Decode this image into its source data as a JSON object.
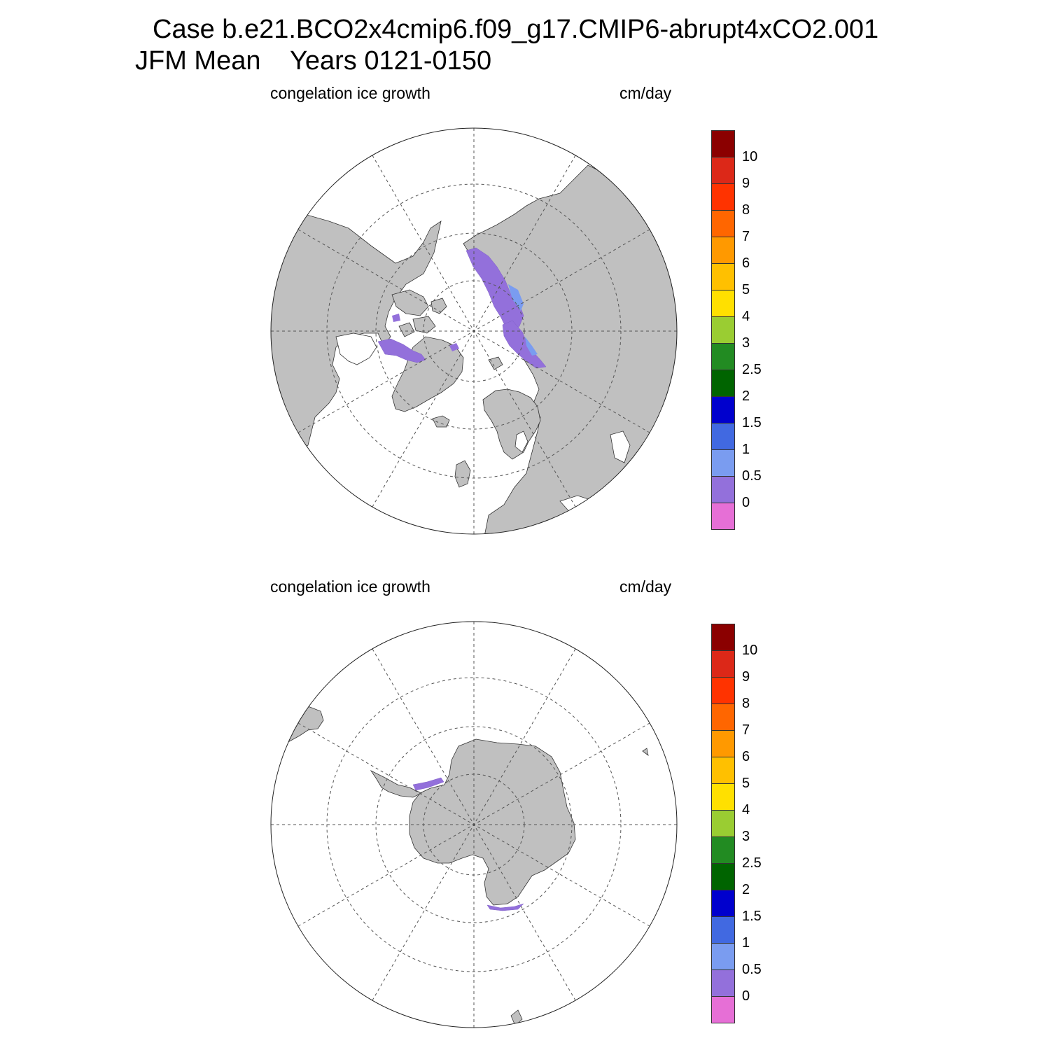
{
  "title": {
    "line1": "Case b.e21.BCO2x4cmip6.f09_g17.CMIP6-abrupt4xCO2.001",
    "line2": "JFM Mean    Years 0121-0150"
  },
  "colors": {
    "land": "#c0c0c0",
    "ocean": "#ffffff",
    "grid": "#555555",
    "coast": "#333333"
  },
  "colorbar": {
    "colors": [
      "#e66fd6",
      "#9370db",
      "#7a9cf0",
      "#4169e1",
      "#0000cd",
      "#006400",
      "#228b22",
      "#9acd32",
      "#ffe000",
      "#ffc000",
      "#ff9900",
      "#ff6600",
      "#ff3300",
      "#dc2818",
      "#8b0000"
    ],
    "labels": [
      "0",
      "0.5",
      "1",
      "1.5",
      "2",
      "2.5",
      "3",
      "4",
      "5",
      "6",
      "7",
      "8",
      "9",
      "10"
    ]
  },
  "panels": [
    {
      "id": "north",
      "variable": "congelation ice growth",
      "units": "cm/day",
      "hemisphere": "Northern Hemisphere"
    },
    {
      "id": "south",
      "variable": "congelation ice growth",
      "units": "cm/day",
      "hemisphere": "Southern Hemisphere"
    }
  ]
}
